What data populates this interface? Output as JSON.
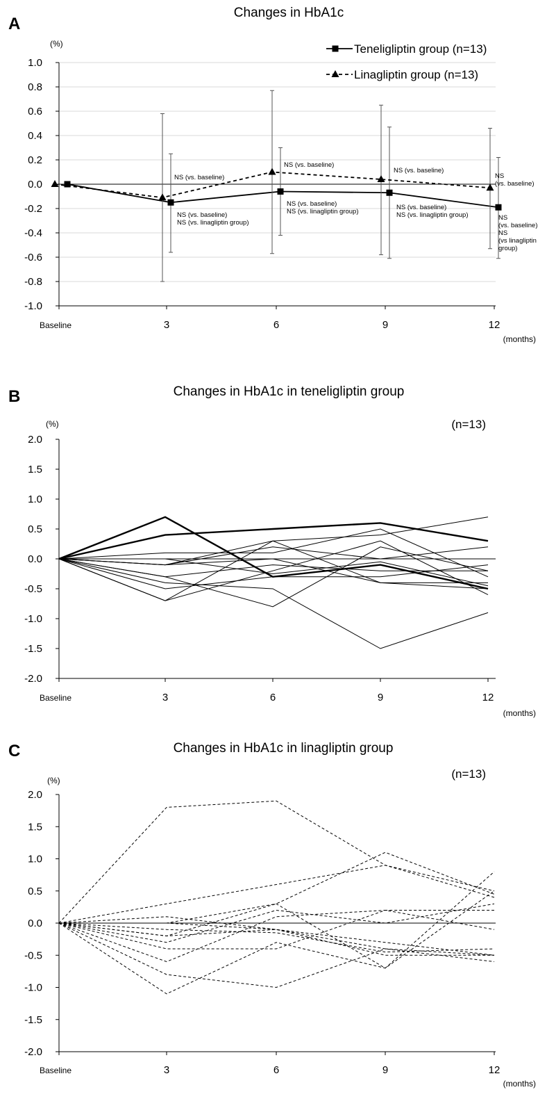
{
  "chart_data": [
    {
      "panel": "A",
      "type": "line",
      "title": "Changes in HbA1c",
      "y_unit": "(%)",
      "x_unit": "(months)",
      "categories": [
        "Baseline",
        "3",
        "6",
        "9",
        "12"
      ],
      "ylim": [
        -1.0,
        1.0
      ],
      "yticks": [
        "1.0",
        "0.8",
        "0.6",
        "0.4",
        "0.2",
        "0.0",
        "-0.2",
        "-0.4",
        "-0.6",
        "-0.8",
        "-1.0"
      ],
      "grid": true,
      "legend_position": "top-right",
      "series": [
        {
          "name": "Teneligliptin group (n=13)",
          "style": "solid",
          "marker": "square",
          "values": [
            0.0,
            -0.15,
            -0.06,
            -0.07,
            -0.19
          ],
          "error_high": [
            null,
            0.25,
            0.3,
            0.47,
            0.22
          ],
          "error_low": [
            null,
            -0.56,
            -0.42,
            -0.61,
            -0.61
          ]
        },
        {
          "name": "Linagliptin group (n=13)",
          "style": "dashed",
          "marker": "triangle",
          "values": [
            0.0,
            -0.11,
            0.1,
            0.04,
            -0.03
          ],
          "error_high": [
            null,
            0.58,
            0.77,
            0.65,
            0.46
          ],
          "error_low": [
            null,
            -0.8,
            -0.57,
            -0.58,
            -0.53
          ]
        }
      ],
      "annotations": [
        {
          "at": "3",
          "series": "Linagliptin group (n=13)",
          "lines": [
            "NS (vs. baseline)"
          ]
        },
        {
          "at": "3",
          "series": "Teneligliptin group (n=13)",
          "lines": [
            "NS (vs. baseline)",
            "NS (vs. linagliptin group)"
          ]
        },
        {
          "at": "6",
          "series": "Linagliptin group (n=13)",
          "lines": [
            "NS (vs. baseline)"
          ]
        },
        {
          "at": "6",
          "series": "Teneligliptin group (n=13)",
          "lines": [
            "NS (vs. baseline)",
            "NS (vs. linagliptin group)"
          ]
        },
        {
          "at": "9",
          "series": "Linagliptin group (n=13)",
          "lines": [
            "NS (vs. baseline)"
          ]
        },
        {
          "at": "9",
          "series": "Teneligliptin group (n=13)",
          "lines": [
            "NS (vs. baseline)",
            "NS (vs. linagliptin group)"
          ]
        },
        {
          "at": "12",
          "series": "Linagliptin group (n=13)",
          "lines": [
            "NS",
            "(vs. baseline)"
          ]
        },
        {
          "at": "12",
          "series": "Teneligliptin group (n=13)",
          "lines": [
            "NS",
            "(vs. baseline)",
            "NS",
            "(vs linagliptin",
            "group)"
          ]
        }
      ]
    },
    {
      "panel": "B",
      "type": "line",
      "title": "Changes in HbA1c in teneligliptin group",
      "y_unit": "(%)",
      "x_unit": "(months)",
      "n_label": "(n=13)",
      "categories": [
        "Baseline",
        "3",
        "6",
        "9",
        "12"
      ],
      "ylim": [
        -2.0,
        2.0
      ],
      "yticks": [
        "2.0",
        "1.5",
        "1.0",
        "0.5",
        "0.0",
        "-0.5",
        "-1.0",
        "-1.5",
        "-2.0"
      ],
      "grid": false,
      "line_style": "solid",
      "series": [
        {
          "values": [
            0,
            0.4,
            0.5,
            0.6,
            0.3
          ],
          "bold": true
        },
        {
          "values": [
            0,
            0.7,
            -0.3,
            -0.1,
            -0.5
          ],
          "bold": true
        },
        {
          "values": [
            0,
            -0.1,
            0.3,
            0.4,
            0.7
          ]
        },
        {
          "values": [
            0,
            0.1,
            0.1,
            0.5,
            -0.3
          ]
        },
        {
          "values": [
            0,
            -0.7,
            0.3,
            -0.4,
            -0.4
          ]
        },
        {
          "values": [
            0,
            -0.7,
            -0.2,
            0.3,
            -0.6
          ]
        },
        {
          "values": [
            0,
            -0.5,
            -0.3,
            -0.3,
            -0.1
          ]
        },
        {
          "values": [
            0,
            -0.3,
            -0.8,
            0.2,
            -0.2
          ]
        },
        {
          "values": [
            0,
            -0.4,
            -0.5,
            -1.5,
            -0.9
          ]
        },
        {
          "values": [
            0,
            -0.1,
            0.2,
            0.0,
            0.2
          ]
        },
        {
          "values": [
            0,
            -0.3,
            -0.1,
            -0.2,
            -0.2
          ]
        },
        {
          "values": [
            0,
            0.0,
            -0.25,
            -0.05,
            -0.45
          ]
        },
        {
          "values": [
            0,
            -0.1,
            0.0,
            -0.4,
            -0.5
          ]
        }
      ]
    },
    {
      "panel": "C",
      "type": "line",
      "title": "Changes in HbA1c in linagliptin group",
      "y_unit": "(%)",
      "x_unit": "(months)",
      "n_label": "(n=13)",
      "categories": [
        "Baseline",
        "3",
        "6",
        "9",
        "12"
      ],
      "ylim": [
        -2.0,
        2.0
      ],
      "yticks": [
        "2.0",
        "1.5",
        "1.0",
        "0.5",
        "0.0",
        "-0.5",
        "-1.0",
        "-1.5",
        "-2.0"
      ],
      "grid": false,
      "line_style": "dashed",
      "series": [
        {
          "values": [
            0,
            1.8,
            1.9,
            0.9,
            0.5
          ]
        },
        {
          "values": [
            0,
            0.3,
            0.6,
            0.9,
            0.4
          ]
        },
        {
          "values": [
            0,
            -0.2,
            0.3,
            1.1,
            0.45
          ]
        },
        {
          "values": [
            0,
            0.1,
            -0.1,
            -0.3,
            -0.5
          ]
        },
        {
          "values": [
            0,
            0.0,
            0.3,
            -0.7,
            0.8
          ]
        },
        {
          "values": [
            0,
            -0.6,
            0.1,
            0.2,
            -0.1
          ]
        },
        {
          "values": [
            0,
            -0.3,
            0.2,
            0.0,
            0.3
          ]
        },
        {
          "values": [
            0,
            -0.4,
            -0.4,
            0.2,
            0.2
          ]
        },
        {
          "values": [
            0,
            -0.8,
            -1.0,
            -0.4,
            -0.5
          ]
        },
        {
          "values": [
            0,
            -1.1,
            -0.3,
            -0.7,
            0.5
          ]
        },
        {
          "values": [
            0,
            -0.2,
            -0.1,
            -0.5,
            -0.5
          ]
        },
        {
          "values": [
            0,
            0.0,
            -0.1,
            -0.4,
            -0.6
          ]
        },
        {
          "values": [
            0,
            -0.1,
            -0.15,
            -0.45,
            -0.4
          ]
        }
      ]
    }
  ]
}
